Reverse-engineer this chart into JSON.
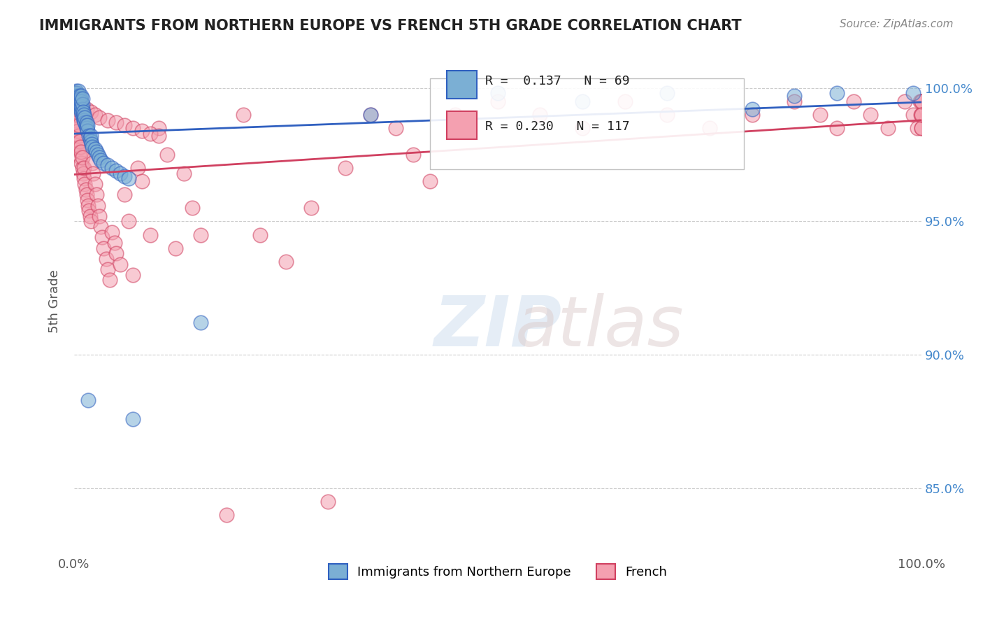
{
  "title": "IMMIGRANTS FROM NORTHERN EUROPE VS FRENCH 5TH GRADE CORRELATION CHART",
  "source": "Source: ZipAtlas.com",
  "xlabel": "",
  "ylabel": "5th Grade",
  "xlim": [
    0.0,
    1.0
  ],
  "ylim": [
    0.825,
    1.015
  ],
  "yticks": [
    0.85,
    0.9,
    0.95,
    1.0
  ],
  "ytick_labels": [
    "85.0%",
    "90.0%",
    "95.0%",
    "100.0%"
  ],
  "xticks": [
    0.0,
    1.0
  ],
  "xtick_labels": [
    "0.0%",
    "100.0%"
  ],
  "legend_r_blue": "R =  0.137",
  "legend_n_blue": "N = 69",
  "legend_r_pink": "R = 0.230",
  "legend_n_pink": "N = 117",
  "legend_label_blue": "Immigrants from Northern Europe",
  "legend_label_pink": "French",
  "blue_color": "#7bafd4",
  "pink_color": "#f4a0b0",
  "trendline_blue_color": "#3060c0",
  "trendline_pink_color": "#d04060",
  "background_color": "#ffffff",
  "watermark_text": "ZIPatlas",
  "blue_scatter_x": [
    0.001,
    0.002,
    0.002,
    0.003,
    0.003,
    0.003,
    0.004,
    0.004,
    0.004,
    0.005,
    0.005,
    0.005,
    0.005,
    0.006,
    0.006,
    0.007,
    0.007,
    0.007,
    0.008,
    0.008,
    0.008,
    0.009,
    0.009,
    0.009,
    0.009,
    0.01,
    0.01,
    0.01,
    0.01,
    0.011,
    0.011,
    0.012,
    0.012,
    0.013,
    0.013,
    0.014,
    0.015,
    0.015,
    0.016,
    0.016,
    0.017,
    0.018,
    0.019,
    0.02,
    0.02,
    0.021,
    0.022,
    0.025,
    0.027,
    0.028,
    0.03,
    0.032,
    0.035,
    0.04,
    0.045,
    0.05,
    0.055,
    0.06,
    0.065,
    0.07,
    0.15,
    0.35,
    0.5,
    0.6,
    0.7,
    0.8,
    0.85,
    0.9,
    0.99
  ],
  "blue_scatter_y": [
    0.996,
    0.997,
    0.998,
    0.995,
    0.997,
    0.999,
    0.994,
    0.996,
    0.998,
    0.993,
    0.995,
    0.997,
    0.999,
    0.994,
    0.996,
    0.993,
    0.995,
    0.997,
    0.992,
    0.994,
    0.996,
    0.991,
    0.993,
    0.995,
    0.997,
    0.99,
    0.992,
    0.994,
    0.996,
    0.989,
    0.991,
    0.988,
    0.99,
    0.987,
    0.989,
    0.986,
    0.985,
    0.987,
    0.984,
    0.986,
    0.883,
    0.982,
    0.981,
    0.98,
    0.982,
    0.979,
    0.978,
    0.977,
    0.976,
    0.975,
    0.974,
    0.973,
    0.972,
    0.971,
    0.97,
    0.969,
    0.968,
    0.967,
    0.966,
    0.876,
    0.912,
    0.99,
    0.998,
    0.995,
    0.998,
    0.992,
    0.997,
    0.998,
    0.998
  ],
  "pink_scatter_x": [
    0.0005,
    0.001,
    0.001,
    0.002,
    0.002,
    0.002,
    0.003,
    0.003,
    0.003,
    0.004,
    0.004,
    0.004,
    0.005,
    0.005,
    0.006,
    0.006,
    0.006,
    0.007,
    0.007,
    0.008,
    0.008,
    0.009,
    0.009,
    0.01,
    0.01,
    0.011,
    0.012,
    0.012,
    0.013,
    0.014,
    0.015,
    0.016,
    0.017,
    0.018,
    0.019,
    0.02,
    0.022,
    0.023,
    0.025,
    0.027,
    0.028,
    0.03,
    0.032,
    0.033,
    0.035,
    0.038,
    0.04,
    0.042,
    0.045,
    0.048,
    0.05,
    0.055,
    0.06,
    0.065,
    0.07,
    0.075,
    0.08,
    0.09,
    0.1,
    0.11,
    0.12,
    0.13,
    0.14,
    0.15,
    0.18,
    0.2,
    0.22,
    0.25,
    0.28,
    0.3,
    0.32,
    0.35,
    0.38,
    0.4,
    0.42,
    0.45,
    0.5,
    0.55,
    0.6,
    0.65,
    0.7,
    0.75,
    0.8,
    0.85,
    0.88,
    0.9,
    0.92,
    0.94,
    0.96,
    0.98,
    0.99,
    0.995,
    0.998,
    0.999,
    0.9995,
    0.9998,
    0.9999,
    1.0,
    1.0,
    1.0,
    0.001,
    0.002,
    0.003,
    0.004,
    0.005,
    0.01,
    0.015,
    0.02,
    0.025,
    0.03,
    0.04,
    0.05,
    0.06,
    0.07,
    0.08,
    0.09,
    0.1
  ],
  "pink_scatter_y": [
    0.99,
    0.988,
    0.994,
    0.986,
    0.99,
    0.996,
    0.984,
    0.988,
    0.992,
    0.982,
    0.986,
    0.99,
    0.98,
    0.984,
    0.978,
    0.982,
    0.986,
    0.976,
    0.98,
    0.974,
    0.978,
    0.972,
    0.976,
    0.97,
    0.974,
    0.968,
    0.966,
    0.97,
    0.964,
    0.962,
    0.96,
    0.958,
    0.956,
    0.954,
    0.952,
    0.95,
    0.972,
    0.968,
    0.964,
    0.96,
    0.956,
    0.952,
    0.948,
    0.944,
    0.94,
    0.936,
    0.932,
    0.928,
    0.946,
    0.942,
    0.938,
    0.934,
    0.96,
    0.95,
    0.93,
    0.97,
    0.965,
    0.945,
    0.985,
    0.975,
    0.94,
    0.968,
    0.955,
    0.945,
    0.84,
    0.99,
    0.945,
    0.935,
    0.955,
    0.845,
    0.97,
    0.99,
    0.985,
    0.975,
    0.965,
    0.99,
    0.995,
    0.99,
    0.985,
    0.995,
    0.99,
    0.985,
    0.99,
    0.995,
    0.99,
    0.985,
    0.995,
    0.99,
    0.985,
    0.995,
    0.99,
    0.985,
    0.995,
    0.99,
    0.985,
    0.995,
    0.99,
    0.985,
    0.995,
    0.99,
    0.998,
    0.997,
    0.996,
    0.995,
    0.994,
    0.993,
    0.992,
    0.991,
    0.99,
    0.989,
    0.988,
    0.987,
    0.986,
    0.985,
    0.984,
    0.983,
    0.982
  ]
}
